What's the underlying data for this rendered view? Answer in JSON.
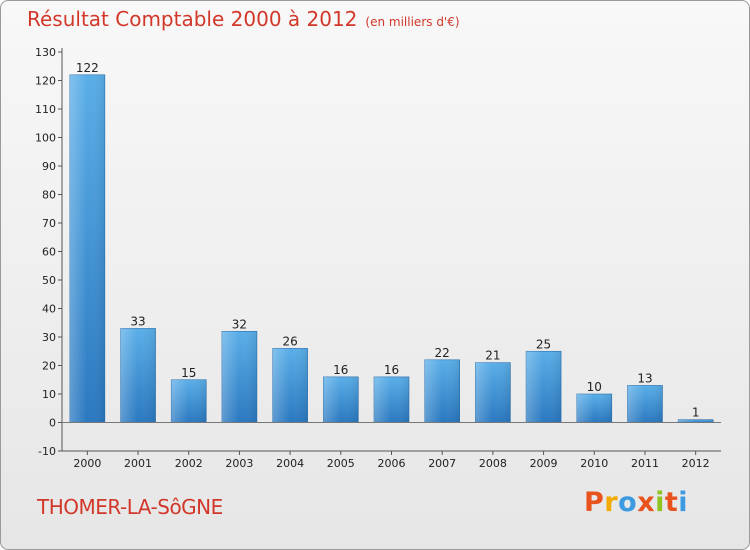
{
  "chart_data": {
    "type": "bar",
    "title": "Résultat Comptable 2000 à 2012",
    "subtitle": "(en milliers d'€)",
    "categories": [
      "2000",
      "2001",
      "2002",
      "2003",
      "2004",
      "2005",
      "2006",
      "2007",
      "2008",
      "2009",
      "2010",
      "2011",
      "2012"
    ],
    "values": [
      122,
      33,
      15,
      32,
      26,
      16,
      16,
      22,
      21,
      25,
      10,
      13,
      1
    ],
    "ylim": [
      -10,
      130
    ],
    "yticks": [
      -10,
      0,
      10,
      20,
      30,
      40,
      50,
      60,
      70,
      80,
      90,
      100,
      110,
      120,
      130
    ],
    "grid": false,
    "bar_color_top": "#5aaee8",
    "bar_color_bottom": "#2a78c0"
  },
  "footer": {
    "commune": "THOMER-LA-SôGNE",
    "logo_letters": [
      "P",
      "r",
      "o",
      "x",
      "i",
      "t",
      "i"
    ],
    "logo_colors": [
      "#e8531d",
      "#f2a900",
      "#3c9be0",
      "#e8531d",
      "#8fc31f",
      "#e8531d",
      "#3c9be0"
    ]
  },
  "colors": {
    "title": "#d2382a",
    "axis": "#555555"
  }
}
